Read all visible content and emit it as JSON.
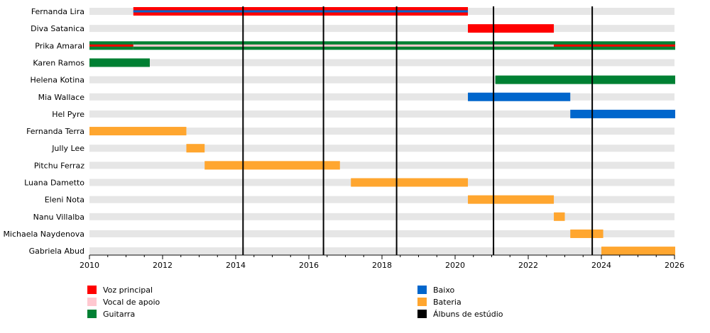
{
  "chart_data": {
    "type": "timeline",
    "x_axis": {
      "range": [
        2010,
        2026
      ],
      "ticks": [
        2010,
        2012,
        2014,
        2016,
        2018,
        2020,
        2022,
        2024,
        2026
      ]
    },
    "roles": [
      {
        "key": "vocal",
        "label": "Voz principal",
        "color": "#ff0000"
      },
      {
        "key": "backing",
        "label": "Vocal de apoio",
        "color": "#ffc8d0"
      },
      {
        "key": "guitar",
        "label": "Guitarra",
        "color": "#008033"
      },
      {
        "key": "bass",
        "label": "Baixo",
        "color": "#0066cc"
      },
      {
        "key": "drums",
        "label": "Bateria",
        "color": "#ffa62f"
      },
      {
        "key": "albums",
        "label": "Álbuns de estúdio",
        "color": "#000000"
      }
    ],
    "members": [
      {
        "name": "Fernanda Lira",
        "periods": [
          {
            "start": 2011.2,
            "end": 2020.35,
            "roles": [
              "vocal",
              "bass"
            ]
          }
        ]
      },
      {
        "name": "Diva Satanica",
        "periods": [
          {
            "start": 2020.35,
            "end": 2022.7,
            "roles": [
              "vocal"
            ]
          }
        ]
      },
      {
        "name": "Prika Amaral",
        "periods": [
          {
            "start": 2010,
            "end": 2011.2,
            "roles": [
              "guitar",
              "vocal"
            ]
          },
          {
            "start": 2011.2,
            "end": 2022.7,
            "roles": [
              "guitar",
              "backing"
            ]
          },
          {
            "start": 2022.7,
            "end": 2026.1,
            "roles": [
              "guitar",
              "vocal"
            ]
          }
        ]
      },
      {
        "name": "Karen Ramos",
        "periods": [
          {
            "start": 2010,
            "end": 2011.65,
            "roles": [
              "guitar"
            ]
          }
        ]
      },
      {
        "name": "Helena Kotina",
        "periods": [
          {
            "start": 2021.1,
            "end": 2026.1,
            "roles": [
              "guitar"
            ]
          }
        ]
      },
      {
        "name": "Mia Wallace",
        "periods": [
          {
            "start": 2020.35,
            "end": 2023.15,
            "roles": [
              "bass"
            ]
          }
        ]
      },
      {
        "name": "Hel Pyre",
        "periods": [
          {
            "start": 2023.15,
            "end": 2026.1,
            "roles": [
              "bass"
            ]
          }
        ]
      },
      {
        "name": "Fernanda Terra",
        "periods": [
          {
            "start": 2010,
            "end": 2012.65,
            "roles": [
              "drums"
            ]
          }
        ]
      },
      {
        "name": "Jully Lee",
        "periods": [
          {
            "start": 2012.65,
            "end": 2013.15,
            "roles": [
              "drums"
            ]
          }
        ]
      },
      {
        "name": "Pitchu Ferraz",
        "periods": [
          {
            "start": 2013.15,
            "end": 2016.85,
            "roles": [
              "drums"
            ]
          }
        ]
      },
      {
        "name": "Luana Dametto",
        "periods": [
          {
            "start": 2017.15,
            "end": 2020.35,
            "roles": [
              "drums"
            ]
          }
        ]
      },
      {
        "name": "Eleni Nota",
        "periods": [
          {
            "start": 2020.35,
            "end": 2022.7,
            "roles": [
              "drums"
            ]
          }
        ]
      },
      {
        "name": "Nanu Villalba",
        "periods": [
          {
            "start": 2022.7,
            "end": 2023.0,
            "roles": [
              "drums"
            ]
          }
        ]
      },
      {
        "name": "Michaela Naydenova",
        "periods": [
          {
            "start": 2023.15,
            "end": 2024.05,
            "roles": [
              "drums"
            ]
          }
        ]
      },
      {
        "name": "Gabriela Abud",
        "periods": [
          {
            "start": 2024.0,
            "end": 2026.1,
            "roles": [
              "drums"
            ]
          }
        ]
      }
    ],
    "albums": [
      2014.2,
      2016.4,
      2018.4,
      2021.05,
      2023.75
    ]
  }
}
